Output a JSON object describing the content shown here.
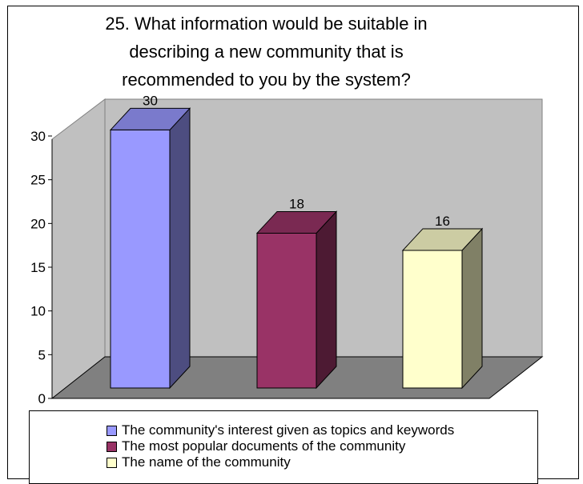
{
  "chart_data": {
    "type": "bar",
    "title": "25. What information would be suitable in\ndescribing a new community that is\nrecommended to you by the system?",
    "categories": [
      "The community's interest given as topics and keywords",
      "The most popular documents of the community",
      "The name of the community"
    ],
    "values": [
      30,
      18,
      16
    ],
    "ylim": [
      0,
      30
    ],
    "yticks": [
      0,
      5,
      10,
      15,
      20,
      25,
      30
    ],
    "grid": false,
    "legend": "bottom",
    "colors": [
      "#9999ff",
      "#993366",
      "#ffffcc"
    ],
    "side_colors": [
      "#4d4d80",
      "#4d1a33",
      "#808066"
    ],
    "top_colors": [
      "#7a7acc",
      "#7a2952",
      "#ccccA3"
    ],
    "wall_color": "#c0c0c0",
    "floor_color": "#808080"
  }
}
